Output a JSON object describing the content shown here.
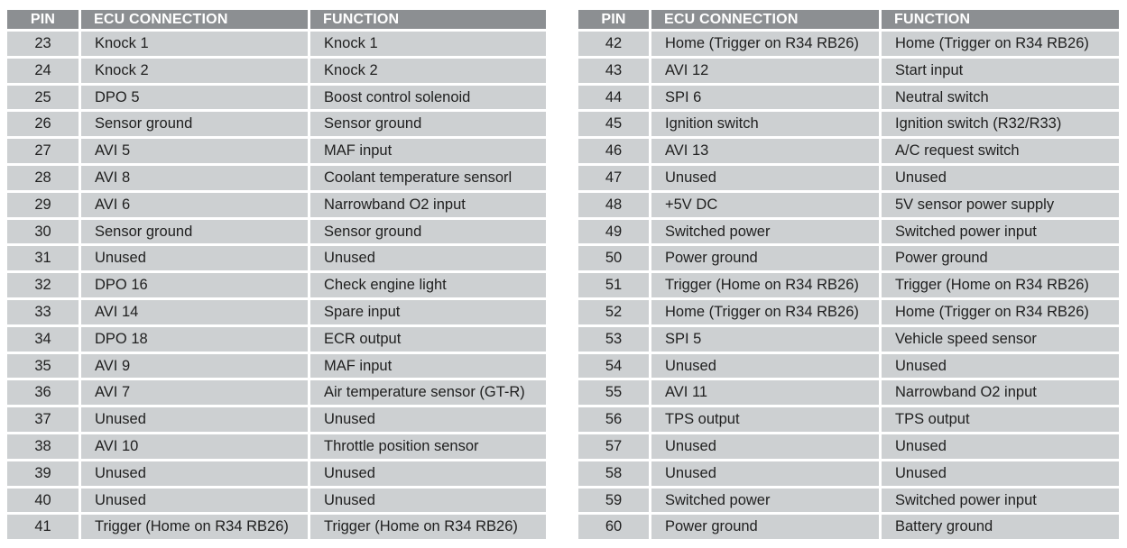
{
  "headers": {
    "pin": "PIN",
    "ecu_connection": "ECU CONNECTION",
    "function": "FUNCTION"
  },
  "left_rows": [
    {
      "pin": "23",
      "ecu": "Knock 1",
      "function": "Knock 1"
    },
    {
      "pin": "24",
      "ecu": "Knock 2",
      "function": "Knock 2"
    },
    {
      "pin": "25",
      "ecu": "DPO 5",
      "function": "Boost control solenoid"
    },
    {
      "pin": "26",
      "ecu": "Sensor ground",
      "function": "Sensor ground"
    },
    {
      "pin": "27",
      "ecu": "AVI 5",
      "function": "MAF input"
    },
    {
      "pin": "28",
      "ecu": "AVI 8",
      "function": "Coolant temperature sensorl"
    },
    {
      "pin": "29",
      "ecu": "AVI 6",
      "function": "Narrowband O2 input"
    },
    {
      "pin": "30",
      "ecu": "Sensor ground",
      "function": "Sensor ground"
    },
    {
      "pin": "31",
      "ecu": "Unused",
      "function": "Unused"
    },
    {
      "pin": "32",
      "ecu": "DPO 16",
      "function": "Check engine light"
    },
    {
      "pin": "33",
      "ecu": "AVI 14",
      "function": "Spare input"
    },
    {
      "pin": "34",
      "ecu": "DPO 18",
      "function": "ECR output"
    },
    {
      "pin": "35",
      "ecu": "AVI 9",
      "function": "MAF input"
    },
    {
      "pin": "36",
      "ecu": "AVI 7",
      "function": "Air temperature sensor (GT-R)"
    },
    {
      "pin": "37",
      "ecu": "Unused",
      "function": "Unused"
    },
    {
      "pin": "38",
      "ecu": "AVI 10",
      "function": "Throttle position sensor"
    },
    {
      "pin": "39",
      "ecu": "Unused",
      "function": "Unused"
    },
    {
      "pin": "40",
      "ecu": "Unused",
      "function": "Unused"
    },
    {
      "pin": "41",
      "ecu": "Trigger (Home on R34 RB26)",
      "function": "Trigger (Home on R34 RB26)"
    }
  ],
  "right_rows": [
    {
      "pin": "42",
      "ecu": "Home (Trigger on R34 RB26)",
      "function": "Home (Trigger on R34 RB26)"
    },
    {
      "pin": "43",
      "ecu": "AVI 12",
      "function": "Start input"
    },
    {
      "pin": "44",
      "ecu": "SPI 6",
      "function": "Neutral switch"
    },
    {
      "pin": "45",
      "ecu": "Ignition switch",
      "function": "Ignition switch (R32/R33)"
    },
    {
      "pin": "46",
      "ecu": "AVI 13",
      "function": "A/C request switch"
    },
    {
      "pin": "47",
      "ecu": "Unused",
      "function": "Unused"
    },
    {
      "pin": "48",
      "ecu": "+5V DC",
      "function": "5V sensor power supply"
    },
    {
      "pin": "49",
      "ecu": "Switched power",
      "function": "Switched power input"
    },
    {
      "pin": "50",
      "ecu": "Power ground",
      "function": "Power ground"
    },
    {
      "pin": "51",
      "ecu": "Trigger (Home on R34 RB26)",
      "function": "Trigger (Home on R34 RB26)"
    },
    {
      "pin": "52",
      "ecu": "Home (Trigger on R34 RB26)",
      "function": "Home (Trigger on R34 RB26)"
    },
    {
      "pin": "53",
      "ecu": "SPI 5",
      "function": "Vehicle speed sensor"
    },
    {
      "pin": "54",
      "ecu": "Unused",
      "function": "Unused"
    },
    {
      "pin": "55",
      "ecu": "AVI 11",
      "function": "Narrowband O2 input"
    },
    {
      "pin": "56",
      "ecu": "TPS output",
      "function": "TPS output"
    },
    {
      "pin": "57",
      "ecu": "Unused",
      "function": "Unused"
    },
    {
      "pin": "58",
      "ecu": "Unused",
      "function": "Unused"
    },
    {
      "pin": "59",
      "ecu": "Switched power",
      "function": "Switched power input"
    },
    {
      "pin": "60",
      "ecu": "Power ground",
      "function": "Battery ground"
    }
  ]
}
